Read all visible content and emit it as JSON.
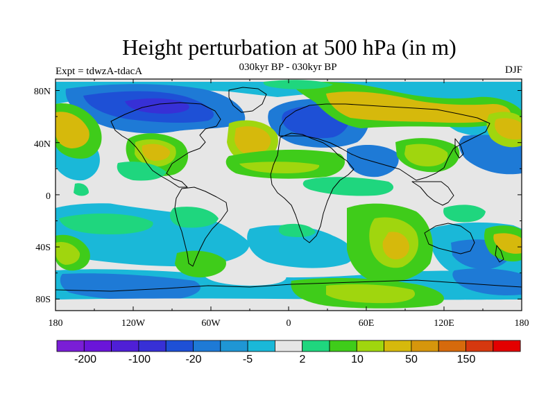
{
  "title": "Height perturbation at 500 hPa (in m)",
  "subtitle": "030kyr BP - 030kyr BP",
  "left_string": "Expt = tdwzA-tdacA",
  "right_string": "DJF",
  "y_ticks": [
    "80N",
    "40N",
    "0",
    "40S",
    "80S"
  ],
  "x_ticks": [
    "180",
    "120W",
    "60W",
    "0",
    "60E",
    "120E",
    "180"
  ],
  "colorbar": {
    "colors": [
      "#7a1ed6",
      "#6a15d9",
      "#4f1fd6",
      "#3730d6",
      "#1e50d6",
      "#1e7ad6",
      "#1f96d4",
      "#1ab8d8",
      "#e6e6e6",
      "#1fd67e",
      "#3fcc1a",
      "#a0d60e",
      "#d6b90c",
      "#d6960c",
      "#d66a0c",
      "#d6380f",
      "#e30000"
    ],
    "labels": [
      "-200",
      "-100",
      "-20",
      "-5",
      "2",
      "10",
      "50",
      "150"
    ]
  }
}
